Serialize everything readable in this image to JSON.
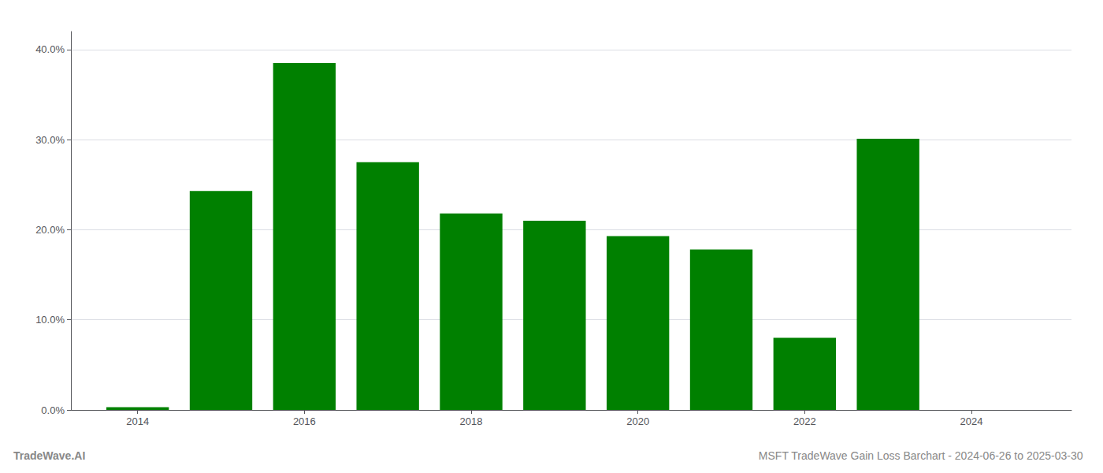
{
  "chart_data": {
    "type": "bar",
    "title": "MSFT TradeWave Gain Loss Barchart - 2024-06-26 to 2025-03-30",
    "annotations": [
      "TradeWave.AI"
    ],
    "x": [
      2014,
      2015,
      2016,
      2017,
      2018,
      2019,
      2020,
      2021,
      2022,
      2023
    ],
    "values": [
      0.003,
      0.243,
      0.385,
      0.275,
      0.218,
      0.21,
      0.193,
      0.178,
      0.08,
      0.301
    ],
    "color": "#008000",
    "xlim": [
      2013.2,
      2025.2
    ],
    "xticks": [
      2014,
      2016,
      2018,
      2020,
      2022,
      2024
    ],
    "ylim": [
      0,
      0.42
    ],
    "yticks": [
      {
        "value": 0.0,
        "label": "0.0%"
      },
      {
        "value": 0.1,
        "label": "10.0%"
      },
      {
        "value": 0.2,
        "label": "20.0%"
      },
      {
        "value": 0.3,
        "label": "30.0%"
      },
      {
        "value": 0.4,
        "label": "40.0%"
      }
    ],
    "grid": true
  }
}
